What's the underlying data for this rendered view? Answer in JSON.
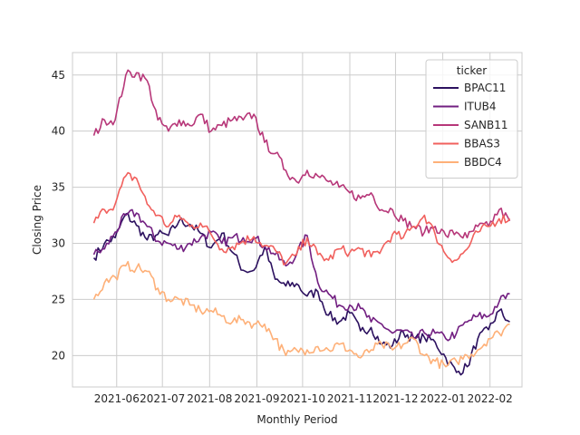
{
  "chart_data": {
    "type": "line",
    "xlabel": "Monthly Period",
    "ylabel": "Closing Price",
    "xlim": [
      "2021-05-03",
      "2022-02-22"
    ],
    "ylim": [
      17.2,
      47.0
    ],
    "x_ticks": [
      "2021-06",
      "2021-07",
      "2021-08",
      "2021-09",
      "2021-10",
      "2021-11",
      "2021-12",
      "2022-01",
      "2022-02"
    ],
    "y_ticks": [
      20,
      25,
      30,
      35,
      40,
      45
    ],
    "grid": true,
    "legend": {
      "title": "ticker",
      "placement": "top-right"
    },
    "series": [
      {
        "name": "BPAC11",
        "color": "#2c115f",
        "points": [
          [
            "2021-05-17",
            28.7
          ],
          [
            "2021-05-24",
            30.0
          ],
          [
            "2021-05-31",
            30.5
          ],
          [
            "2021-06-07",
            32.6
          ],
          [
            "2021-06-14",
            31.6
          ],
          [
            "2021-06-21",
            30.3
          ],
          [
            "2021-06-28",
            30.8
          ],
          [
            "2021-07-05",
            30.7
          ],
          [
            "2021-07-12",
            32.0
          ],
          [
            "2021-07-19",
            31.7
          ],
          [
            "2021-07-26",
            30.9
          ],
          [
            "2021-08-02",
            29.6
          ],
          [
            "2021-08-09",
            30.9
          ],
          [
            "2021-08-16",
            29.2
          ],
          [
            "2021-08-23",
            27.6
          ],
          [
            "2021-08-30",
            27.6
          ],
          [
            "2021-09-06",
            29.6
          ],
          [
            "2021-09-13",
            26.8
          ],
          [
            "2021-09-20",
            26.2
          ],
          [
            "2021-09-27",
            26.4
          ],
          [
            "2021-10-04",
            25.3
          ],
          [
            "2021-10-11",
            25.7
          ],
          [
            "2021-10-18",
            23.6
          ],
          [
            "2021-10-25",
            23.0
          ],
          [
            "2021-11-01",
            23.8
          ],
          [
            "2021-11-08",
            22.2
          ],
          [
            "2021-11-15",
            22.5
          ],
          [
            "2021-11-22",
            21.0
          ],
          [
            "2021-11-29",
            20.9
          ],
          [
            "2021-12-06",
            22.1
          ],
          [
            "2021-12-13",
            21.5
          ],
          [
            "2021-12-20",
            21.6
          ],
          [
            "2021-12-27",
            21.2
          ],
          [
            "2022-01-03",
            19.8
          ],
          [
            "2022-01-10",
            18.5
          ],
          [
            "2022-01-17",
            19.0
          ],
          [
            "2022-01-24",
            21.5
          ],
          [
            "2022-01-31",
            22.3
          ],
          [
            "2022-02-07",
            24.0
          ],
          [
            "2022-02-14",
            23.0
          ]
        ]
      },
      {
        "name": "ITUB4",
        "color": "#721f81",
        "points": [
          [
            "2021-05-17",
            29.0
          ],
          [
            "2021-05-24",
            29.5
          ],
          [
            "2021-05-31",
            31.0
          ],
          [
            "2021-06-07",
            32.5
          ],
          [
            "2021-06-14",
            32.7
          ],
          [
            "2021-06-21",
            31.5
          ],
          [
            "2021-06-28",
            30.2
          ],
          [
            "2021-07-05",
            30.0
          ],
          [
            "2021-07-12",
            29.5
          ],
          [
            "2021-07-19",
            30.0
          ],
          [
            "2021-07-26",
            30.5
          ],
          [
            "2021-08-02",
            31.0
          ],
          [
            "2021-08-09",
            30.0
          ],
          [
            "2021-08-16",
            30.5
          ],
          [
            "2021-08-23",
            30.5
          ],
          [
            "2021-08-30",
            30.5
          ],
          [
            "2021-09-06",
            29.8
          ],
          [
            "2021-09-13",
            29.0
          ],
          [
            "2021-09-20",
            28.0
          ],
          [
            "2021-09-27",
            29.0
          ],
          [
            "2021-10-04",
            30.7
          ],
          [
            "2021-10-11",
            26.5
          ],
          [
            "2021-10-18",
            25.5
          ],
          [
            "2021-10-25",
            24.5
          ],
          [
            "2021-11-01",
            24.5
          ],
          [
            "2021-11-08",
            24.2
          ],
          [
            "2021-11-15",
            23.0
          ],
          [
            "2021-11-22",
            22.8
          ],
          [
            "2021-11-29",
            22.0
          ],
          [
            "2021-12-06",
            22.2
          ],
          [
            "2021-12-13",
            21.5
          ],
          [
            "2021-12-20",
            22.0
          ],
          [
            "2021-12-27",
            22.0
          ],
          [
            "2022-01-03",
            21.5
          ],
          [
            "2022-01-10",
            22.0
          ],
          [
            "2022-01-17",
            23.0
          ],
          [
            "2022-01-24",
            23.5
          ],
          [
            "2022-01-31",
            23.5
          ],
          [
            "2022-02-07",
            24.8
          ],
          [
            "2022-02-14",
            25.5
          ]
        ]
      },
      {
        "name": "SANB11",
        "color": "#b73779",
        "points": [
          [
            "2021-05-17",
            39.6
          ],
          [
            "2021-05-24",
            41.0
          ],
          [
            "2021-05-31",
            41.0
          ],
          [
            "2021-06-07",
            45.0
          ],
          [
            "2021-06-14",
            45.2
          ],
          [
            "2021-06-21",
            44.5
          ],
          [
            "2021-06-28",
            41.0
          ],
          [
            "2021-07-05",
            40.0
          ],
          [
            "2021-07-12",
            41.0
          ],
          [
            "2021-07-19",
            40.5
          ],
          [
            "2021-07-26",
            41.5
          ],
          [
            "2021-08-02",
            40.0
          ],
          [
            "2021-08-09",
            40.5
          ],
          [
            "2021-08-16",
            41.0
          ],
          [
            "2021-08-23",
            41.0
          ],
          [
            "2021-08-30",
            41.5
          ],
          [
            "2021-09-06",
            39.0
          ],
          [
            "2021-09-13",
            38.0
          ],
          [
            "2021-09-20",
            36.5
          ],
          [
            "2021-09-27",
            35.5
          ],
          [
            "2021-10-04",
            36.5
          ],
          [
            "2021-10-11",
            36.0
          ],
          [
            "2021-10-18",
            35.5
          ],
          [
            "2021-10-25",
            35.0
          ],
          [
            "2021-11-01",
            34.5
          ],
          [
            "2021-11-08",
            34.0
          ],
          [
            "2021-11-15",
            34.5
          ],
          [
            "2021-11-22",
            33.0
          ],
          [
            "2021-11-29",
            33.0
          ],
          [
            "2021-12-06",
            32.0
          ],
          [
            "2021-12-13",
            31.5
          ],
          [
            "2021-12-20",
            31.0
          ],
          [
            "2021-12-27",
            31.5
          ],
          [
            "2022-01-03",
            30.7
          ],
          [
            "2022-01-10",
            31.0
          ],
          [
            "2022-01-17",
            30.5
          ],
          [
            "2022-01-24",
            31.5
          ],
          [
            "2022-01-31",
            31.5
          ],
          [
            "2022-02-07",
            33.0
          ],
          [
            "2022-02-14",
            32.0
          ]
        ]
      },
      {
        "name": "BBAS3",
        "color": "#f1605d",
        "points": [
          [
            "2021-05-17",
            31.8
          ],
          [
            "2021-05-24",
            33.0
          ],
          [
            "2021-05-31",
            33.5
          ],
          [
            "2021-06-07",
            36.0
          ],
          [
            "2021-06-14",
            35.8
          ],
          [
            "2021-06-21",
            33.5
          ],
          [
            "2021-06-28",
            32.5
          ],
          [
            "2021-07-05",
            31.5
          ],
          [
            "2021-07-12",
            32.5
          ],
          [
            "2021-07-19",
            31.5
          ],
          [
            "2021-07-26",
            31.8
          ],
          [
            "2021-08-02",
            30.8
          ],
          [
            "2021-08-09",
            29.5
          ],
          [
            "2021-08-16",
            29.7
          ],
          [
            "2021-08-23",
            30.2
          ],
          [
            "2021-08-30",
            30.6
          ],
          [
            "2021-09-06",
            29.8
          ],
          [
            "2021-09-13",
            29.4
          ],
          [
            "2021-09-20",
            28.2
          ],
          [
            "2021-09-27",
            29.0
          ],
          [
            "2021-10-04",
            30.5
          ],
          [
            "2021-10-11",
            29.0
          ],
          [
            "2021-10-18",
            28.5
          ],
          [
            "2021-10-25",
            29.5
          ],
          [
            "2021-11-01",
            29.2
          ],
          [
            "2021-11-08",
            29.5
          ],
          [
            "2021-11-15",
            28.8
          ],
          [
            "2021-11-22",
            29.5
          ],
          [
            "2021-11-29",
            30.8
          ],
          [
            "2021-12-06",
            30.5
          ],
          [
            "2021-12-13",
            31.5
          ],
          [
            "2021-12-20",
            32.5
          ],
          [
            "2021-12-27",
            30.8
          ],
          [
            "2022-01-03",
            29.0
          ],
          [
            "2022-01-10",
            28.5
          ],
          [
            "2022-01-17",
            29.5
          ],
          [
            "2022-01-24",
            31.0
          ],
          [
            "2022-01-31",
            31.5
          ],
          [
            "2022-02-07",
            32.2
          ],
          [
            "2022-02-14",
            32.2
          ]
        ]
      },
      {
        "name": "BBDC4",
        "color": "#feb078",
        "points": [
          [
            "2021-05-17",
            25.0
          ],
          [
            "2021-05-24",
            26.5
          ],
          [
            "2021-05-31",
            27.0
          ],
          [
            "2021-06-07",
            28.0
          ],
          [
            "2021-06-14",
            27.8
          ],
          [
            "2021-06-21",
            27.5
          ],
          [
            "2021-06-28",
            26.0
          ],
          [
            "2021-07-05",
            25.0
          ],
          [
            "2021-07-12",
            25.0
          ],
          [
            "2021-07-19",
            24.5
          ],
          [
            "2021-07-26",
            24.0
          ],
          [
            "2021-08-02",
            24.0
          ],
          [
            "2021-08-09",
            23.5
          ],
          [
            "2021-08-16",
            23.0
          ],
          [
            "2021-08-23",
            23.2
          ],
          [
            "2021-08-30",
            22.8
          ],
          [
            "2021-09-06",
            22.8
          ],
          [
            "2021-09-13",
            21.5
          ],
          [
            "2021-09-20",
            20.0
          ],
          [
            "2021-09-27",
            20.5
          ],
          [
            "2021-10-04",
            20.5
          ],
          [
            "2021-10-11",
            20.8
          ],
          [
            "2021-10-18",
            20.5
          ],
          [
            "2021-10-25",
            21.0
          ],
          [
            "2021-11-01",
            20.5
          ],
          [
            "2021-11-08",
            19.8
          ],
          [
            "2021-11-15",
            20.5
          ],
          [
            "2021-11-22",
            21.0
          ],
          [
            "2021-11-29",
            20.5
          ],
          [
            "2021-12-06",
            21.0
          ],
          [
            "2021-12-13",
            21.5
          ],
          [
            "2021-12-20",
            20.0
          ],
          [
            "2021-12-27",
            19.5
          ],
          [
            "2022-01-03",
            19.0
          ],
          [
            "2022-01-10",
            19.5
          ],
          [
            "2022-01-17",
            20.0
          ],
          [
            "2022-01-24",
            20.5
          ],
          [
            "2022-01-31",
            21.5
          ],
          [
            "2022-02-07",
            22.0
          ],
          [
            "2022-02-14",
            22.8
          ]
        ]
      }
    ]
  }
}
